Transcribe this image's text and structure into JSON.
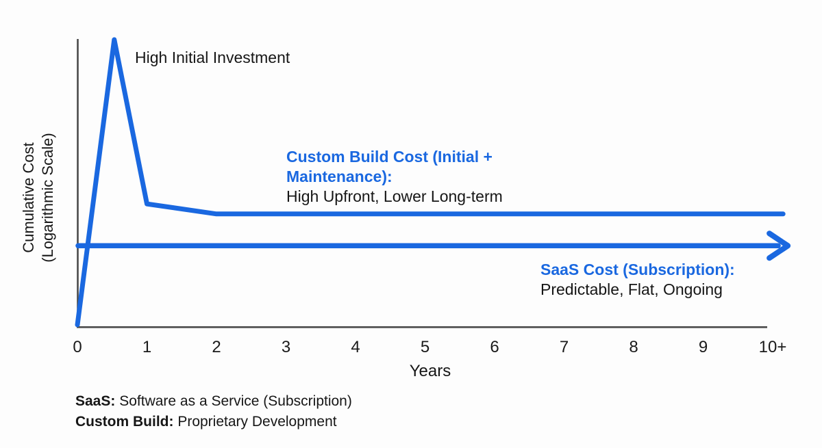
{
  "colors": {
    "line_blue": "#1A68E0",
    "axis_gray": "#4a4a4a",
    "text_black": "#161616"
  },
  "chart_data": {
    "type": "line",
    "title": "",
    "xlabel": "Years",
    "ylabel": "Cumulative Cost (Logarithmic Scale)",
    "ylabel_lines": [
      "Cumulative Cost",
      "(Logarithmic Scale)"
    ],
    "x_ticks": [
      "0",
      "1",
      "2",
      "3",
      "4",
      "5",
      "6",
      "7",
      "8",
      "9",
      "10+"
    ],
    "x_range": [
      0,
      10
    ],
    "y_scale": "logarithmic (relative, no tick values shown)",
    "grid": false,
    "legend_position": "inline annotations",
    "series": [
      {
        "name": "Custom Build Cost (Initial + Maintenance)",
        "label_title_lines": [
          "Custom Build Cost (Initial +",
          "Maintenance):"
        ],
        "label_desc": "High Upfront, Lower Long-term",
        "points": [
          [
            0,
            0.005
          ],
          [
            0.53,
            1.0
          ],
          [
            1.0,
            0.427
          ],
          [
            2.0,
            0.392
          ],
          [
            10.15,
            0.392
          ]
        ],
        "arrow_end": false
      },
      {
        "name": "SaaS Cost (Subscription)",
        "label_title_lines": [
          "SaaS Cost (Subscription):"
        ],
        "label_desc": "Predictable, Flat, Ongoing",
        "points": [
          [
            0.01,
            0.281
          ],
          [
            10.08,
            0.281
          ]
        ],
        "arrow_end": true
      }
    ],
    "point_annotations": [
      {
        "text": "High Initial Investment",
        "near": "peak of custom build line (~year 0.5)"
      }
    ]
  },
  "annotations": {
    "high_initial": "High Initial Investment",
    "custom_title_line1": "Custom Build Cost (Initial +",
    "custom_title_line2": "Maintenance):",
    "custom_desc": "High Upfront, Lower Long-term",
    "saas_title": "SaaS Cost (Subscription):",
    "saas_desc": "Predictable, Flat, Ongoing"
  },
  "footer": {
    "line1_term": "SaaS:",
    "line1_def": "Software as a Service (Subscription)",
    "line2_term": "Custom Build:",
    "line2_def": "Proprietary Development"
  }
}
